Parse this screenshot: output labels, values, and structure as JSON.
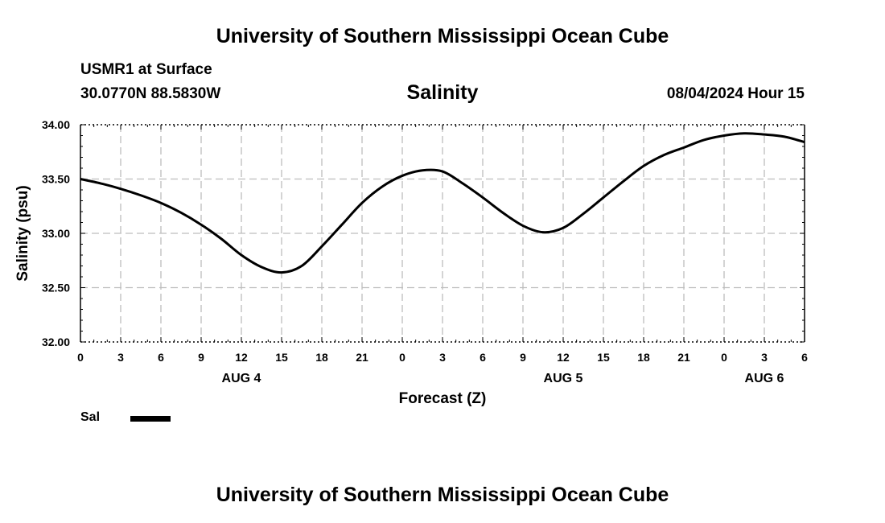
{
  "header": {
    "main_title": "University of Southern Mississippi Ocean Cube",
    "station": "USMR1 at Surface",
    "coords": "30.0770N  88.5830W",
    "run_time": "08/04/2024 Hour 15"
  },
  "footer": {
    "title": "University of Southern Mississippi Ocean Cube"
  },
  "chart_data": {
    "type": "line",
    "title": "Salinity",
    "xlabel": "Forecast (Z)",
    "ylabel": "Salinity (psu)",
    "x_unit": "forecast hour",
    "xlim": [
      0,
      54
    ],
    "ylim": [
      32.0,
      34.0
    ],
    "yticks": [
      32.0,
      32.5,
      33.0,
      33.5,
      34.0
    ],
    "ytick_labels": [
      "32.00",
      "32.50",
      "33.00",
      "33.50",
      "34.00"
    ],
    "xticks": [
      0,
      3,
      6,
      9,
      12,
      15,
      18,
      21,
      24,
      27,
      30,
      33,
      36,
      39,
      42,
      45,
      48,
      51,
      54
    ],
    "xtick_labels": [
      "0",
      "3",
      "6",
      "9",
      "12",
      "15",
      "18",
      "21",
      "0",
      "3",
      "6",
      "9",
      "12",
      "15",
      "18",
      "21",
      "0",
      "3",
      "6"
    ],
    "day_labels": [
      {
        "x": 12,
        "label": "AUG 4"
      },
      {
        "x": 36,
        "label": "AUG 5"
      },
      {
        "x": 51,
        "label": "AUG 6"
      }
    ],
    "grid": true,
    "legend_placement": "bottom-left",
    "series": [
      {
        "name": "Sal",
        "color": "#000000",
        "x": [
          0,
          1.5,
          3,
          4.5,
          6,
          7.5,
          9,
          10.5,
          12,
          13.5,
          15,
          16.5,
          18,
          19.5,
          21,
          22.5,
          24,
          25.5,
          27,
          28.5,
          30,
          31.5,
          33,
          34.5,
          36,
          37.5,
          39,
          40.5,
          42,
          43.5,
          45,
          46.5,
          48,
          49.5,
          51,
          52.5,
          54
        ],
        "y": [
          33.5,
          33.46,
          33.41,
          33.35,
          33.28,
          33.19,
          33.08,
          32.95,
          32.8,
          32.69,
          32.64,
          32.7,
          32.88,
          33.08,
          33.28,
          33.43,
          33.53,
          33.58,
          33.57,
          33.46,
          33.33,
          33.19,
          33.07,
          33.01,
          33.05,
          33.18,
          33.33,
          33.48,
          33.62,
          33.72,
          33.79,
          33.86,
          33.9,
          33.92,
          33.91,
          33.89,
          33.84
        ]
      }
    ]
  }
}
